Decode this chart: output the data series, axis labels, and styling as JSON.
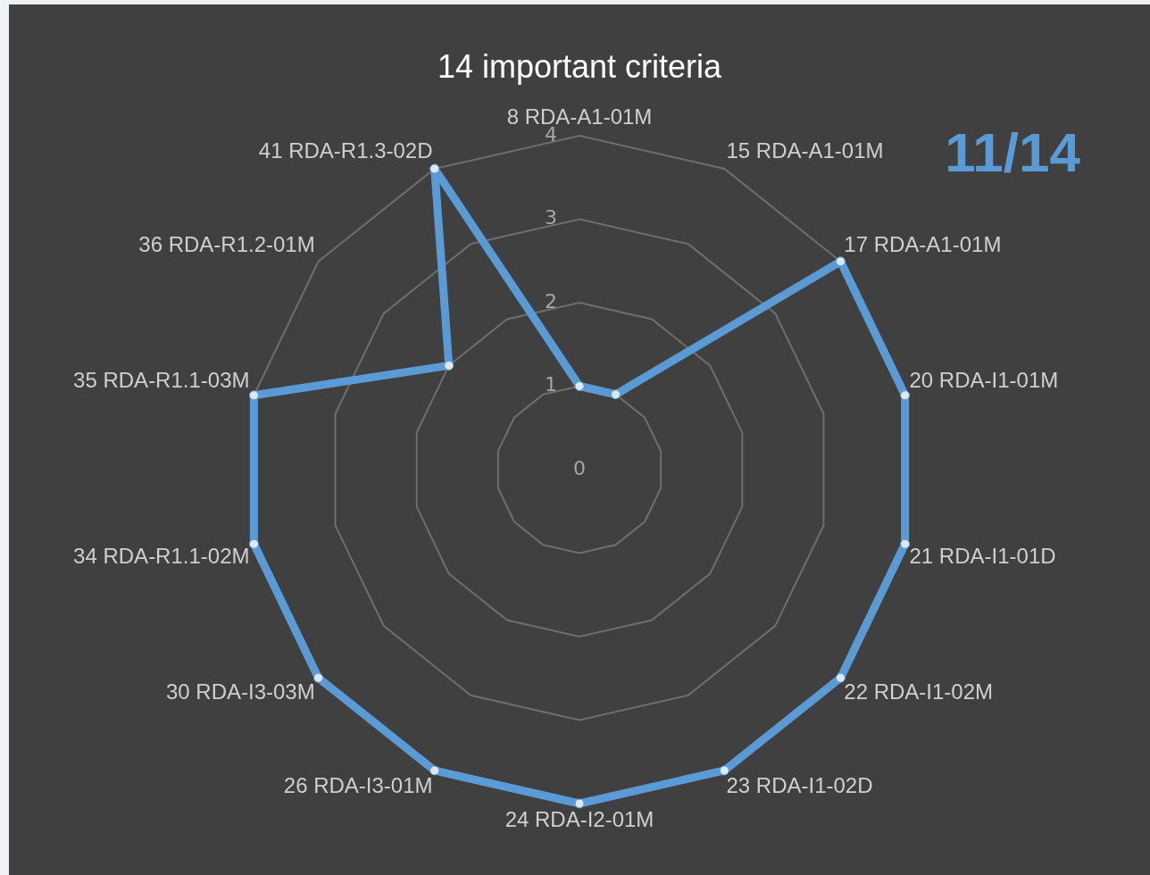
{
  "chart_data": {
    "type": "radar",
    "title": "14 important criteria",
    "categories": [
      "8 RDA-A1-01M",
      "15 RDA-A1-01M",
      "17 RDA-A1-01M",
      "20 RDA-I1-01M",
      "21 RDA-I1-01D",
      "22 RDA-I1-02M",
      "23 RDA-I1-02D",
      "24 RDA-I2-01M",
      "26 RDA-I3-01M",
      "30 RDA-I3-03M",
      "34 RDA-R1.1-02M",
      "35 RDA-R1.1-03M",
      "36 RDA-R1.2-01M",
      "41 RDA-R1.3-02D"
    ],
    "series": [
      {
        "color": "#5b9bd5",
        "values": [
          1,
          1,
          4,
          4,
          4,
          4,
          4,
          4,
          4,
          4,
          4,
          4,
          2,
          4
        ]
      }
    ],
    "ylim": [
      0,
      4
    ],
    "yticks": [
      0,
      1,
      2,
      3,
      4
    ],
    "grid": true,
    "marker": "circle",
    "annotations": [
      "11/14"
    ]
  }
}
